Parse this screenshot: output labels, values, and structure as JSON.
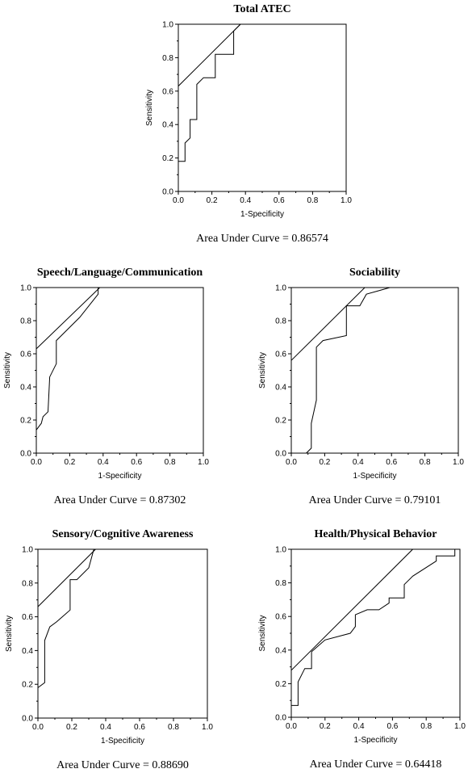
{
  "chart_data": [
    {
      "type": "line",
      "title": "Total ATEC",
      "xlabel": "1-Specificity",
      "ylabel": "Sensitivity",
      "xlim": [
        0,
        1
      ],
      "ylim": [
        0,
        1
      ],
      "ticks": [
        "0.0",
        "0.2",
        "0.4",
        "0.6",
        "0.8",
        "1.0"
      ],
      "auc_text": "Area Under Curve = 0.86574",
      "series": [
        {
          "x": [
            0,
            0,
            0.04,
            0.04,
            0.07,
            0.07,
            0.11,
            0.11,
            0.15,
            0.15,
            0.22,
            0.22,
            0.33,
            0.33,
            0.37,
            0.37,
            1
          ],
          "y": [
            0,
            0.18,
            0.18,
            0.29,
            0.32,
            0.43,
            0.43,
            0.64,
            0.68,
            0.68,
            0.68,
            0.82,
            0.82,
            0.96,
            1,
            1,
            1
          ]
        },
        {
          "x": [
            0,
            0.37
          ],
          "y": [
            0.63,
            1
          ]
        }
      ]
    },
    {
      "type": "line",
      "title": "Speech/Language/Communication",
      "xlabel": "1-Specificity",
      "ylabel": "Sensitivity",
      "xlim": [
        0,
        1
      ],
      "ylim": [
        0,
        1
      ],
      "ticks": [
        "0.0",
        "0.2",
        "0.4",
        "0.6",
        "0.8",
        "1.0"
      ],
      "auc_text": "Area Under Curve = 0.87302",
      "series": [
        {
          "x": [
            0,
            0,
            0.03,
            0.04,
            0.07,
            0.08,
            0.08,
            0.12,
            0.12,
            0.15,
            0.26,
            0.37,
            0.37
          ],
          "y": [
            0,
            0.14,
            0.18,
            0.22,
            0.25,
            0.46,
            0.46,
            0.54,
            0.68,
            0.71,
            0.82,
            0.96,
            1
          ]
        },
        {
          "x": [
            0,
            0.38
          ],
          "y": [
            0.63,
            1
          ]
        }
      ]
    },
    {
      "type": "line",
      "title": "Sociability",
      "xlabel": "1-Specificity",
      "ylabel": "Sensitivity",
      "xlim": [
        0,
        1
      ],
      "ylim": [
        0,
        1
      ],
      "ticks": [
        "0.0",
        "0.2",
        "0.4",
        "0.6",
        "0.8",
        "1.0"
      ],
      "auc_text": "Area Under Curve = 0.79101",
      "series": [
        {
          "x": [
            0.09,
            0.12,
            0.12,
            0.15,
            0.15,
            0.19,
            0.33,
            0.33,
            0.41,
            0.45,
            0.52,
            0.59,
            1
          ],
          "y": [
            0,
            0.03,
            0.18,
            0.32,
            0.64,
            0.68,
            0.71,
            0.89,
            0.89,
            0.96,
            0.98,
            1,
            1
          ]
        },
        {
          "x": [
            0,
            0.44
          ],
          "y": [
            0.56,
            1
          ]
        }
      ]
    },
    {
      "type": "line",
      "title": "Sensory/Cognitive Awareness",
      "xlabel": "1-Specificity",
      "ylabel": "Sensitivity",
      "xlim": [
        0,
        1
      ],
      "ylim": [
        0,
        1
      ],
      "ticks": [
        "0.0",
        "0.2",
        "0.4",
        "0.6",
        "0.8",
        "1.0"
      ],
      "auc_text": "Area Under Curve = 0.88690",
      "series": [
        {
          "x": [
            0,
            0,
            0.04,
            0.04,
            0.07,
            0.11,
            0.19,
            0.19,
            0.23,
            0.3,
            0.33,
            1
          ],
          "y": [
            0,
            0.18,
            0.21,
            0.46,
            0.54,
            0.57,
            0.64,
            0.82,
            0.82,
            0.89,
            1,
            1
          ]
        },
        {
          "x": [
            0,
            0.34
          ],
          "y": [
            0.66,
            1
          ]
        }
      ]
    },
    {
      "type": "line",
      "title": "Health/Physical Behavior",
      "xlabel": "1-Specificity",
      "ylabel": "Sensitivity",
      "xlim": [
        0,
        1
      ],
      "ylim": [
        0,
        1
      ],
      "ticks": [
        "0.0",
        "0.2",
        "0.4",
        "0.6",
        "0.8",
        "1.0"
      ],
      "auc_text": "Area Under Curve = 0.64418",
      "series": [
        {
          "x": [
            0,
            0.04,
            0.04,
            0.08,
            0.12,
            0.12,
            0.2,
            0.35,
            0.38,
            0.38,
            0.45,
            0.52,
            0.58,
            0.58,
            0.67,
            0.67,
            0.72,
            0.86,
            0.86,
            0.97,
            0.97,
            1
          ],
          "y": [
            0.07,
            0.07,
            0.21,
            0.29,
            0.29,
            0.39,
            0.46,
            0.5,
            0.54,
            0.61,
            0.64,
            0.64,
            0.68,
            0.71,
            0.71,
            0.79,
            0.84,
            0.93,
            0.96,
            0.96,
            1,
            1
          ]
        },
        {
          "x": [
            0,
            0.72
          ],
          "y": [
            0.28,
            1
          ]
        }
      ]
    }
  ]
}
